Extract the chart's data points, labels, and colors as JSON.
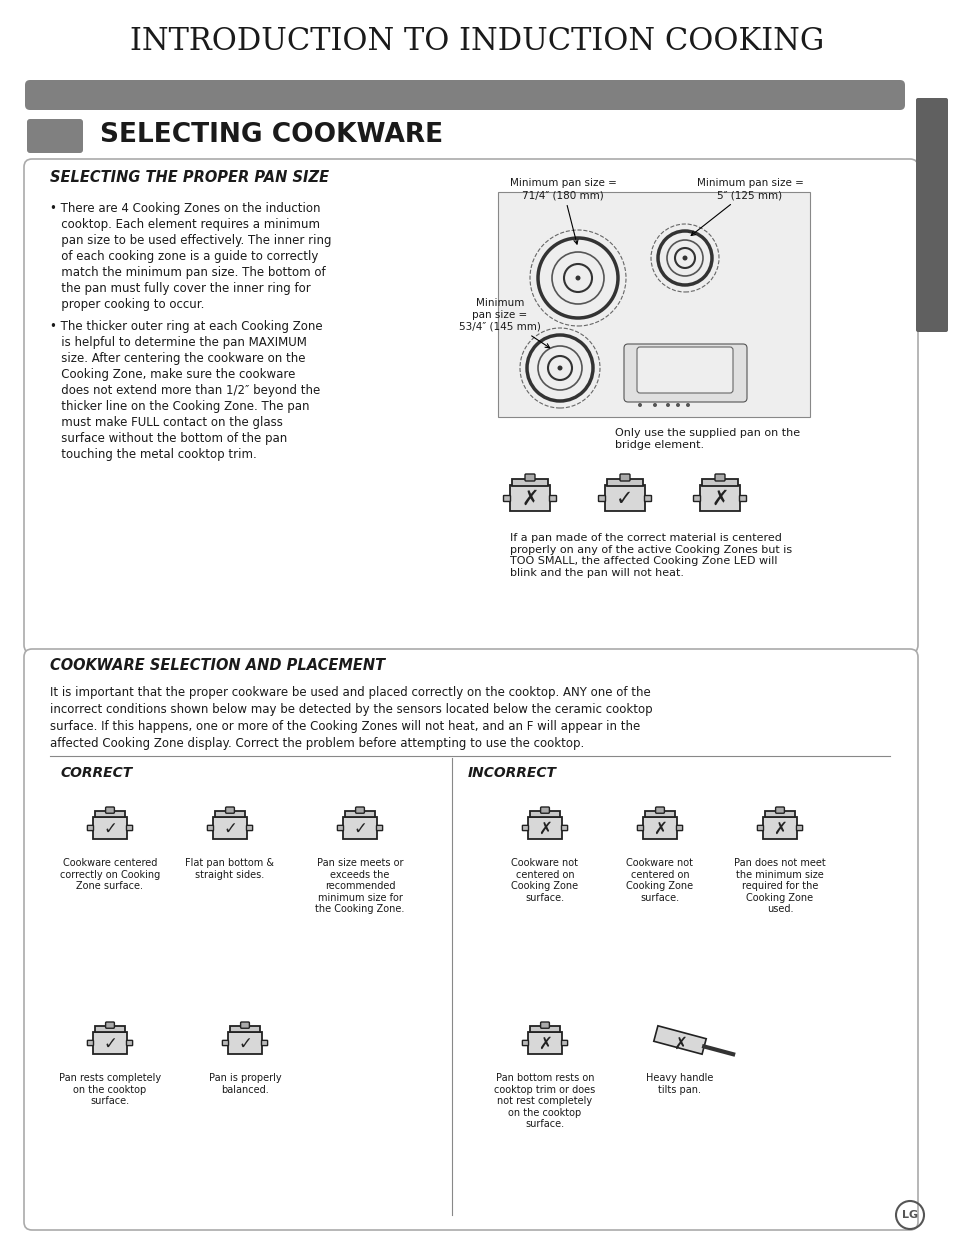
{
  "title": "INTRODUCTION TO INDUCTION COOKING",
  "title_font": "serif",
  "title_size": 22,
  "header_bar_color": "#808080",
  "section1_title": "SELECTING COOKWARE",
  "section1_title_size": 20,
  "subsection1_title": "SELECTING THE PROPER PAN SIZE",
  "subsection1_text_1": [
    "• There are 4 Cooking Zones on the induction",
    "   cooktop. Each element requires a minimum",
    "   pan size to be used effectively. The inner ring",
    "   of each cooking zone is a guide to correctly",
    "   match the minimum pan size. The bottom of",
    "   the pan must fully cover the inner ring for",
    "   proper cooking to occur."
  ],
  "subsection1_text_2": [
    "• The thicker outer ring at each Cooking Zone",
    "   is helpful to determine the pan MAXIMUM",
    "   size. After centering the cookware on the",
    "   Cooking Zone, make sure the cookware",
    "   does not extend more than 1/2″ beyond the",
    "   thicker line on the Cooking Zone. The pan",
    "   must make FULL contact on the glass",
    "   surface without the bottom of the pan",
    "   touching the metal cooktop trim."
  ],
  "bridge_text": "Only use the supplied pan on the\nbridge element.",
  "too_small_text": "If a pan made of the correct material is centered\nproperly on any of the active Cooking Zones but is\nTOO SMALL, the affected Cooking Zone LED will\nblink and the pan will not heat.",
  "section2_title": "COOKWARE SELECTION AND PLACEMENT",
  "section2_intro_lines": [
    "It is important that the proper cookware be used and placed correctly on the cooktop. ANY one of the",
    "incorrect conditions shown below may be detected by the sensors located below the ceramic cooktop",
    "surface. If this happens, one or more of the Cooking Zones will not heat, and an F will appear in the",
    "affected Cooking Zone display. Correct the problem before attempting to use the cooktop."
  ],
  "correct_title": "CORRECT",
  "incorrect_title": "INCORRECT",
  "correct_captions": [
    "Cookware centered\ncorrectly on Cooking\nZone surface.",
    "Flat pan bottom &\nstraight sides.",
    "Pan size meets or\nexceeds the\nrecommended\nminimum size for\nthe Cooking Zone."
  ],
  "incorrect_captions": [
    "Cookware not\ncentered on\nCooking Zone\nsurface.",
    "Cookware not\ncentered on\nCooking Zone\nsurface.",
    "Pan does not meet\nthe minimum size\nrequired for the\nCooking Zone\nused."
  ],
  "correct_captions2": [
    "Pan rests completely\non the cooktop\nsurface.",
    "Pan is properly\nbalanced."
  ],
  "incorrect_captions2": [
    "Pan bottom rests on\ncooktop trim or does\nnot rest completely\non the cooktop\nsurface.",
    "Heavy handle\ntilts pan."
  ],
  "bg_color": "#ffffff",
  "box_bg": "#f5f5f5",
  "text_color": "#1a1a1a",
  "gray_color": "#808080",
  "english_tab_color": "#606060"
}
